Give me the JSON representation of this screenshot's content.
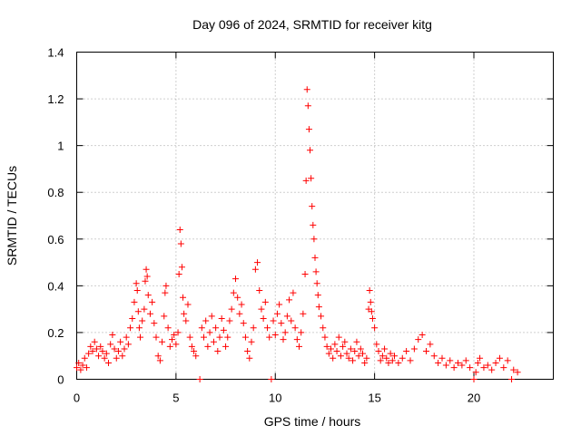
{
  "chart_data": {
    "type": "scatter",
    "title": "Day 096 of 2024, SRMTID for receiver kitg",
    "xlabel": "GPS time / hours",
    "ylabel": "SRMTID / TECUs",
    "xlim": [
      0,
      24
    ],
    "ylim": [
      0,
      1.4
    ],
    "x_ticks": [
      0,
      5,
      10,
      15,
      20
    ],
    "x_tick_labels": [
      "0",
      "5",
      "10",
      "15",
      "20"
    ],
    "y_ticks": [
      0,
      0.2,
      0.4,
      0.6,
      0.8,
      1.0,
      1.2,
      1.4
    ],
    "y_tick_labels": [
      "0",
      "0.2",
      "0.4",
      "0.6",
      "0.8",
      "1",
      "1.2",
      "1.4"
    ],
    "grid": true,
    "marker": "+",
    "series": [
      {
        "name": "SRMTID",
        "color": "#ff0000",
        "points": [
          [
            0.0,
            0.05
          ],
          [
            0.1,
            0.07
          ],
          [
            0.2,
            0.04
          ],
          [
            0.3,
            0.06
          ],
          [
            0.4,
            0.09
          ],
          [
            0.5,
            0.05
          ],
          [
            0.6,
            0.11
          ],
          [
            0.7,
            0.14
          ],
          [
            0.8,
            0.12
          ],
          [
            0.9,
            0.16
          ],
          [
            1.0,
            0.13
          ],
          [
            1.1,
            0.1
          ],
          [
            1.2,
            0.14
          ],
          [
            1.3,
            0.12
          ],
          [
            1.4,
            0.09
          ],
          [
            1.5,
            0.11
          ],
          [
            1.6,
            0.07
          ],
          [
            1.7,
            0.15
          ],
          [
            1.8,
            0.19
          ],
          [
            1.9,
            0.13
          ],
          [
            2.0,
            0.09
          ],
          [
            2.1,
            0.12
          ],
          [
            2.2,
            0.16
          ],
          [
            2.3,
            0.1
          ],
          [
            2.4,
            0.13
          ],
          [
            2.5,
            0.18
          ],
          [
            2.6,
            0.15
          ],
          [
            2.7,
            0.22
          ],
          [
            2.8,
            0.26
          ],
          [
            2.9,
            0.33
          ],
          [
            3.0,
            0.41
          ],
          [
            3.05,
            0.38
          ],
          [
            3.1,
            0.29
          ],
          [
            3.15,
            0.22
          ],
          [
            3.2,
            0.18
          ],
          [
            3.3,
            0.25
          ],
          [
            3.4,
            0.3
          ],
          [
            3.45,
            0.42
          ],
          [
            3.5,
            0.47
          ],
          [
            3.55,
            0.44
          ],
          [
            3.6,
            0.36
          ],
          [
            3.7,
            0.28
          ],
          [
            3.8,
            0.33
          ],
          [
            3.9,
            0.24
          ],
          [
            4.0,
            0.18
          ],
          [
            4.1,
            0.1
          ],
          [
            4.2,
            0.08
          ],
          [
            4.3,
            0.16
          ],
          [
            4.4,
            0.27
          ],
          [
            4.45,
            0.37
          ],
          [
            4.5,
            0.4
          ],
          [
            4.6,
            0.22
          ],
          [
            4.7,
            0.14
          ],
          [
            4.8,
            0.17
          ],
          [
            4.9,
            0.19
          ],
          [
            5.0,
            0.15
          ],
          [
            5.1,
            0.2
          ],
          [
            5.15,
            0.45
          ],
          [
            5.2,
            0.64
          ],
          [
            5.25,
            0.58
          ],
          [
            5.3,
            0.48
          ],
          [
            5.35,
            0.35
          ],
          [
            5.4,
            0.28
          ],
          [
            5.5,
            0.25
          ],
          [
            5.6,
            0.32
          ],
          [
            5.7,
            0.18
          ],
          [
            5.8,
            0.14
          ],
          [
            5.9,
            0.12
          ],
          [
            6.0,
            0.1
          ],
          [
            6.2,
            0.0
          ],
          [
            6.3,
            0.22
          ],
          [
            6.4,
            0.18
          ],
          [
            6.5,
            0.25
          ],
          [
            6.6,
            0.14
          ],
          [
            6.7,
            0.2
          ],
          [
            6.8,
            0.27
          ],
          [
            6.9,
            0.16
          ],
          [
            7.0,
            0.22
          ],
          [
            7.1,
            0.12
          ],
          [
            7.2,
            0.18
          ],
          [
            7.3,
            0.26
          ],
          [
            7.4,
            0.21
          ],
          [
            7.5,
            0.14
          ],
          [
            7.6,
            0.18
          ],
          [
            7.7,
            0.25
          ],
          [
            7.8,
            0.3
          ],
          [
            7.9,
            0.37
          ],
          [
            8.0,
            0.43
          ],
          [
            8.1,
            0.35
          ],
          [
            8.2,
            0.28
          ],
          [
            8.3,
            0.32
          ],
          [
            8.4,
            0.24
          ],
          [
            8.5,
            0.18
          ],
          [
            8.6,
            0.12
          ],
          [
            8.7,
            0.09
          ],
          [
            8.8,
            0.16
          ],
          [
            8.9,
            0.22
          ],
          [
            9.0,
            0.47
          ],
          [
            9.1,
            0.5
          ],
          [
            9.2,
            0.38
          ],
          [
            9.3,
            0.3
          ],
          [
            9.4,
            0.26
          ],
          [
            9.5,
            0.33
          ],
          [
            9.6,
            0.22
          ],
          [
            9.7,
            0.18
          ],
          [
            9.8,
            0.0
          ],
          [
            9.9,
            0.25
          ],
          [
            10.0,
            0.19
          ],
          [
            10.1,
            0.28
          ],
          [
            10.2,
            0.32
          ],
          [
            10.3,
            0.24
          ],
          [
            10.4,
            0.17
          ],
          [
            10.5,
            0.2
          ],
          [
            10.6,
            0.27
          ],
          [
            10.7,
            0.34
          ],
          [
            10.8,
            0.25
          ],
          [
            10.9,
            0.37
          ],
          [
            11.0,
            0.22
          ],
          [
            11.1,
            0.17
          ],
          [
            11.2,
            0.14
          ],
          [
            11.3,
            0.2
          ],
          [
            11.4,
            0.28
          ],
          [
            11.5,
            0.45
          ],
          [
            11.55,
            0.85
          ],
          [
            11.6,
            1.24
          ],
          [
            11.65,
            1.17
          ],
          [
            11.7,
            1.07
          ],
          [
            11.75,
            0.98
          ],
          [
            11.8,
            0.86
          ],
          [
            11.85,
            0.74
          ],
          [
            11.9,
            0.66
          ],
          [
            11.95,
            0.6
          ],
          [
            12.0,
            0.52
          ],
          [
            12.05,
            0.46
          ],
          [
            12.1,
            0.41
          ],
          [
            12.15,
            0.36
          ],
          [
            12.2,
            0.31
          ],
          [
            12.3,
            0.27
          ],
          [
            12.4,
            0.22
          ],
          [
            12.5,
            0.18
          ],
          [
            12.6,
            0.14
          ],
          [
            12.7,
            0.11
          ],
          [
            12.8,
            0.13
          ],
          [
            12.9,
            0.09
          ],
          [
            13.0,
            0.15
          ],
          [
            13.1,
            0.12
          ],
          [
            13.2,
            0.18
          ],
          [
            13.3,
            0.1
          ],
          [
            13.4,
            0.14
          ],
          [
            13.5,
            0.16
          ],
          [
            13.6,
            0.11
          ],
          [
            13.7,
            0.09
          ],
          [
            13.8,
            0.13
          ],
          [
            13.9,
            0.08
          ],
          [
            14.0,
            0.12
          ],
          [
            14.1,
            0.16
          ],
          [
            14.2,
            0.1
          ],
          [
            14.3,
            0.13
          ],
          [
            14.4,
            0.11
          ],
          [
            14.5,
            0.07
          ],
          [
            14.6,
            0.09
          ],
          [
            14.7,
            0.3
          ],
          [
            14.75,
            0.38
          ],
          [
            14.8,
            0.33
          ],
          [
            14.85,
            0.29
          ],
          [
            14.9,
            0.26
          ],
          [
            15.0,
            0.22
          ],
          [
            15.1,
            0.15
          ],
          [
            15.2,
            0.12
          ],
          [
            15.3,
            0.08
          ],
          [
            15.4,
            0.1
          ],
          [
            15.5,
            0.13
          ],
          [
            15.6,
            0.09
          ],
          [
            15.7,
            0.07
          ],
          [
            15.8,
            0.11
          ],
          [
            15.9,
            0.08
          ],
          [
            16.0,
            0.1
          ],
          [
            16.2,
            0.07
          ],
          [
            16.4,
            0.09
          ],
          [
            16.6,
            0.12
          ],
          [
            16.8,
            0.08
          ],
          [
            17.0,
            0.13
          ],
          [
            17.2,
            0.17
          ],
          [
            17.4,
            0.19
          ],
          [
            17.6,
            0.12
          ],
          [
            17.8,
            0.15
          ],
          [
            18.0,
            0.1
          ],
          [
            18.2,
            0.07
          ],
          [
            18.4,
            0.09
          ],
          [
            18.6,
            0.06
          ],
          [
            18.8,
            0.08
          ],
          [
            19.0,
            0.05
          ],
          [
            19.2,
            0.07
          ],
          [
            19.4,
            0.06
          ],
          [
            19.6,
            0.08
          ],
          [
            19.8,
            0.05
          ],
          [
            20.0,
            0.0
          ],
          [
            20.1,
            0.03
          ],
          [
            20.2,
            0.07
          ],
          [
            20.3,
            0.09
          ],
          [
            20.5,
            0.05
          ],
          [
            20.7,
            0.06
          ],
          [
            20.9,
            0.04
          ],
          [
            21.1,
            0.07
          ],
          [
            21.3,
            0.09
          ],
          [
            21.5,
            0.05
          ],
          [
            21.7,
            0.08
          ],
          [
            21.9,
            0.0
          ],
          [
            22.0,
            0.04
          ],
          [
            22.2,
            0.03
          ]
        ]
      }
    ]
  }
}
